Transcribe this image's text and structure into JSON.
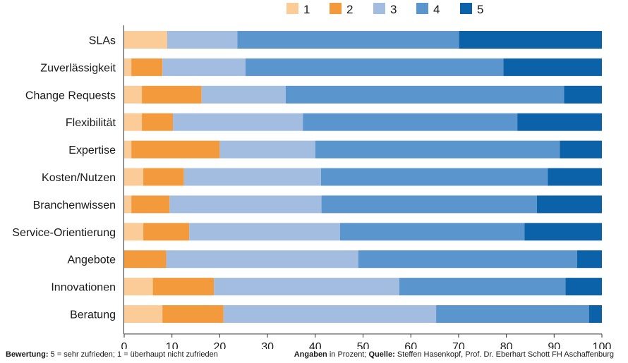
{
  "chart_data": {
    "type": "bar",
    "orientation": "horizontal",
    "stacked": true,
    "categories": [
      "SLAs",
      "Zuverlässigkeit",
      "Change Requests",
      "Flexibilität",
      "Expertise",
      "Kosten/Nutzen",
      "Branchenwissen",
      "Service-Orientierung",
      "Angebote",
      "Innovationen",
      "Beratung"
    ],
    "series": [
      {
        "name": "1",
        "color": "#fbcb98",
        "values": [
          9,
          1.5,
          3.7,
          3.7,
          1.5,
          4,
          1.5,
          4,
          0,
          6,
          8
        ]
      },
      {
        "name": "2",
        "color": "#f39b3c",
        "values": [
          0,
          6.5,
          12.5,
          6.5,
          18.5,
          8.5,
          8,
          9.6,
          8.8,
          12.8,
          12.8
        ]
      },
      {
        "name": "3",
        "color": "#a3bde0",
        "values": [
          14.7,
          17.4,
          17.6,
          27.2,
          20,
          28.7,
          31.8,
          31.6,
          40.2,
          38.8,
          44.5
        ]
      },
      {
        "name": "4",
        "color": "#5b95cd",
        "values": [
          46.4,
          54,
          58.3,
          44.9,
          51.2,
          47.5,
          45.1,
          38.6,
          45.8,
          34.8,
          32
        ]
      },
      {
        "name": "5",
        "color": "#0b62a8",
        "values": [
          29.9,
          20.6,
          7.9,
          17.7,
          8.8,
          11.3,
          13.6,
          16.2,
          5.2,
          7.6,
          2.7
        ]
      }
    ],
    "xlim": [
      0,
      100
    ],
    "xticks": [
      0,
      10,
      20,
      30,
      40,
      50,
      60,
      70,
      80,
      90,
      100
    ],
    "legend_position": "top-right",
    "grid": false
  },
  "footer": {
    "left_bold": "Bewertung:",
    "left_text": " 5 = sehr zufrieden; 1 = überhaupt nicht zufrieden",
    "right_bold1": "Angaben",
    "right_text1": " in Prozent; ",
    "right_bold2": "Quelle:",
    "right_text2": " Steffen Hasenkopf, Prof. Dr. Eberhart Schott FH Aschaffenburg"
  }
}
